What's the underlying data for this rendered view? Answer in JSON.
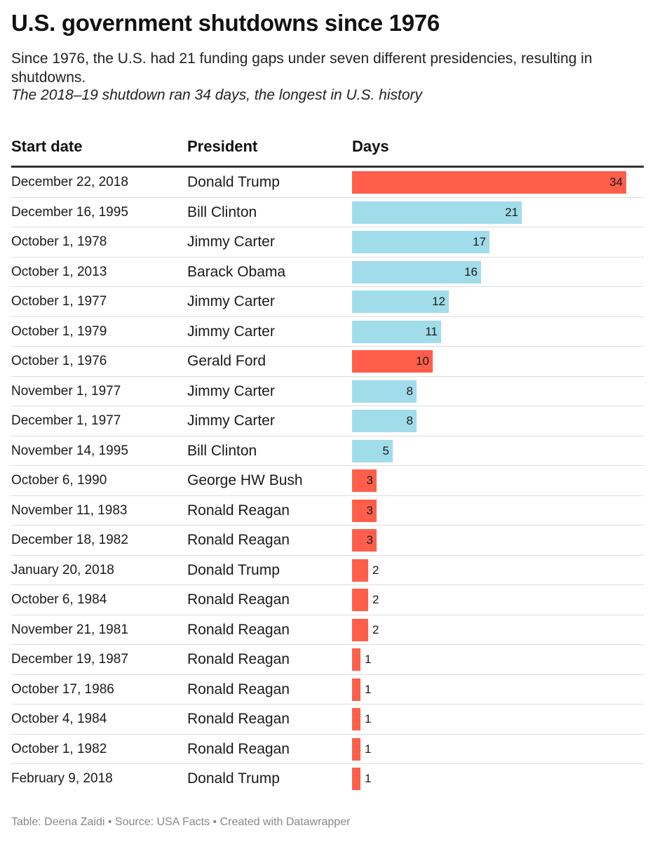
{
  "header": {
    "title": "U.S. government shutdowns since 1976",
    "subtitle": "Since 1976, the U.S. had 21 funding gaps under seven different presidencies, resulting in shutdowns.",
    "note": "The 2018–19 shutdown ran 34 days, the longest in U.S. history"
  },
  "table": {
    "columns": [
      "Start date",
      "President",
      "Days"
    ]
  },
  "colors": {
    "republican": "#ff5e4b",
    "democrat": "#a1dcea"
  },
  "chart_data": {
    "type": "bar",
    "title": "U.S. government shutdowns since 1976",
    "xlabel": "Days",
    "ylabel": "",
    "xlim": [
      0,
      34
    ],
    "rows": [
      {
        "date": "December 22, 2018",
        "president": "Donald Trump",
        "days": 34,
        "party": "republican"
      },
      {
        "date": "December 16, 1995",
        "president": "Bill Clinton",
        "days": 21,
        "party": "democrat"
      },
      {
        "date": "October 1, 1978",
        "president": "Jimmy Carter",
        "days": 17,
        "party": "democrat"
      },
      {
        "date": "October 1, 2013",
        "president": "Barack Obama",
        "days": 16,
        "party": "democrat"
      },
      {
        "date": "October 1, 1977",
        "president": "Jimmy Carter",
        "days": 12,
        "party": "democrat"
      },
      {
        "date": "October 1, 1979",
        "president": "Jimmy Carter",
        "days": 11,
        "party": "democrat"
      },
      {
        "date": "October 1, 1976",
        "president": "Gerald Ford",
        "days": 10,
        "party": "republican"
      },
      {
        "date": "November 1, 1977",
        "president": "Jimmy Carter",
        "days": 8,
        "party": "democrat"
      },
      {
        "date": "December 1, 1977",
        "president": "Jimmy Carter",
        "days": 8,
        "party": "democrat"
      },
      {
        "date": "November 14, 1995",
        "president": "Bill Clinton",
        "days": 5,
        "party": "democrat"
      },
      {
        "date": "October 6, 1990",
        "president": "George HW Bush",
        "days": 3,
        "party": "republican"
      },
      {
        "date": "November 11, 1983",
        "president": "Ronald Reagan",
        "days": 3,
        "party": "republican"
      },
      {
        "date": "December 18, 1982",
        "president": "Ronald Reagan",
        "days": 3,
        "party": "republican"
      },
      {
        "date": "January 20, 2018",
        "president": "Donald Trump",
        "days": 2,
        "party": "republican"
      },
      {
        "date": "October 6, 1984",
        "president": "Ronald Reagan",
        "days": 2,
        "party": "republican"
      },
      {
        "date": "November 21, 1981",
        "president": "Ronald Reagan",
        "days": 2,
        "party": "republican"
      },
      {
        "date": "December 19, 1987",
        "president": "Ronald Reagan",
        "days": 1,
        "party": "republican"
      },
      {
        "date": "October 17, 1986",
        "president": "Ronald Reagan",
        "days": 1,
        "party": "republican"
      },
      {
        "date": "October 4, 1984",
        "president": "Ronald Reagan",
        "days": 1,
        "party": "republican"
      },
      {
        "date": "October 1, 1982",
        "president": "Ronald Reagan",
        "days": 1,
        "party": "republican"
      },
      {
        "date": "February 9, 2018",
        "president": "Donald Trump",
        "days": 1,
        "party": "republican"
      }
    ]
  },
  "footer": {
    "credit": "Table: Deena     Zaidi • Source: USA Facts • Created with Datawrapper"
  }
}
